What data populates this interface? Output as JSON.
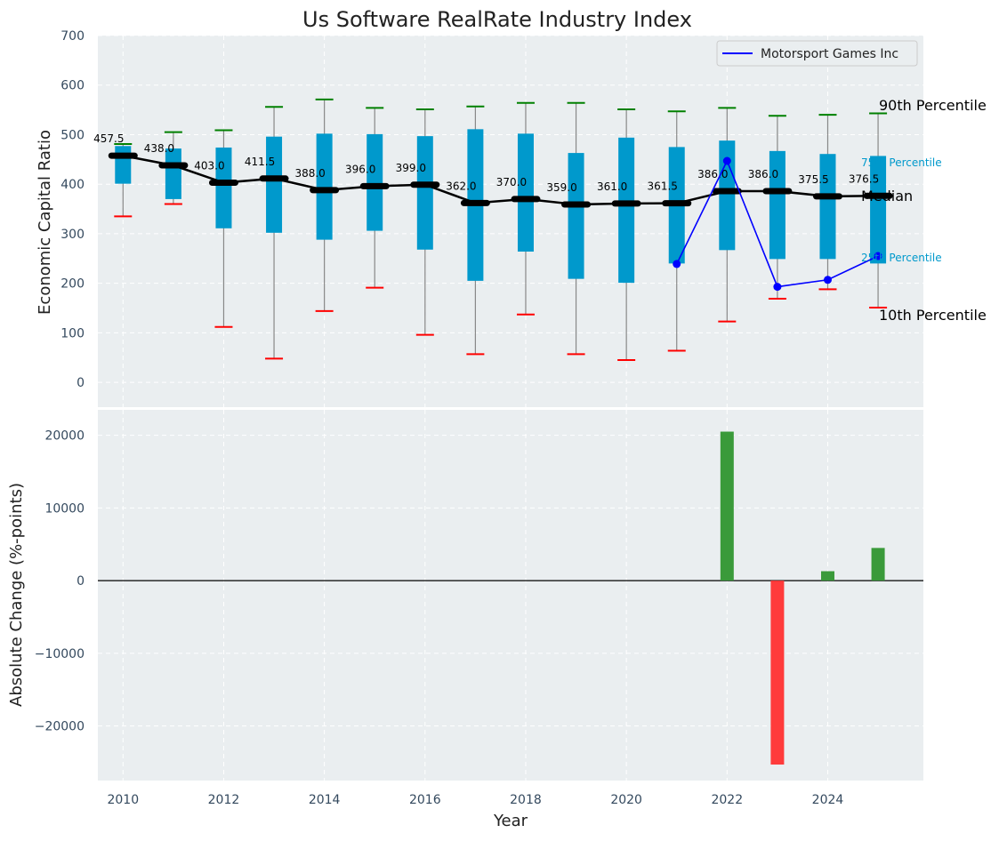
{
  "title": "Us Software RealRate Industry Index",
  "colors": {
    "panel_bg": "#eaeef0",
    "box": "#0099cc",
    "median_line": "#000000",
    "company_line": "#0000ff",
    "whisker_high": "#008000",
    "whisker_low": "#ff0000",
    "bar_positive": "#3a9a3a",
    "bar_negative": "#ff3b3b",
    "tick_text": "#34495e"
  },
  "chart_data": [
    {
      "type": "box",
      "title": "Us Software RealRate Industry Index",
      "xlabel": "",
      "ylabel": "Economic Capital Ratio",
      "ylim": [
        -50,
        700
      ],
      "xlim": [
        2009.5,
        2025.9
      ],
      "yticks": [
        0,
        100,
        200,
        300,
        400,
        500,
        600,
        700
      ],
      "grid": true,
      "legend": {
        "position": "top-right",
        "entries": [
          "Motorsport Games Inc"
        ]
      },
      "years": [
        2010,
        2011,
        2012,
        2013,
        2014,
        2015,
        2016,
        2017,
        2018,
        2019,
        2020,
        2021,
        2022,
        2023,
        2024,
        2025
      ],
      "p10": [
        335,
        360,
        112,
        48,
        144,
        191,
        96,
        57,
        137,
        57,
        45,
        64,
        123,
        169,
        188,
        151
      ],
      "p25": [
        401,
        370,
        311,
        302,
        288,
        306,
        268,
        205,
        264,
        209,
        201,
        240,
        267,
        249,
        249,
        240
      ],
      "median": [
        457.5,
        438.0,
        403.0,
        411.5,
        388.0,
        396.0,
        399.0,
        362.0,
        370.0,
        359.0,
        361.0,
        361.5,
        386.0,
        386.0,
        375.5,
        376.5
      ],
      "median_labels": [
        "457.5",
        "438.0",
        "403.0",
        "411.5",
        "388.0",
        "396.0",
        "399.0",
        "362.0",
        "370.0",
        "359.0",
        "361.0",
        "361.5",
        "386.0",
        "386.0",
        "375.5",
        "376.5"
      ],
      "p75": [
        477,
        472,
        474,
        496,
        502,
        501,
        497,
        511,
        502,
        463,
        494,
        475,
        488,
        467,
        461,
        457
      ],
      "p90": [
        481,
        505,
        509,
        556,
        571,
        554,
        551,
        557,
        564,
        564,
        551,
        547,
        554,
        538,
        540,
        543
      ],
      "series": [
        {
          "name": "Motorsport Games Inc",
          "x": [
            2021,
            2022,
            2023,
            2024,
            2025
          ],
          "values": [
            239,
            447,
            193,
            207,
            255
          ]
        }
      ],
      "annotations": [
        "90th Percentile",
        "75th Percentile",
        "Median",
        "25th Percentile",
        "10th Percentile"
      ]
    },
    {
      "type": "bar",
      "xlabel": "Year",
      "ylabel": "Absolute Change (%-points)",
      "ylim": [
        -27500,
        23500
      ],
      "yticks": [
        -20000,
        -10000,
        0,
        10000,
        20000
      ],
      "ytick_labels": [
        "−20000",
        "−10000",
        "0",
        "10000",
        "20000"
      ],
      "xticks": [
        2010,
        2012,
        2014,
        2016,
        2018,
        2020,
        2022,
        2024
      ],
      "xtick_labels": [
        "2010",
        "2012",
        "2014",
        "2016",
        "2018",
        "2020",
        "2022",
        "2024"
      ],
      "grid": true,
      "x": [
        2022,
        2023,
        2024,
        2025
      ],
      "values": [
        20500,
        -25300,
        1300,
        4500
      ]
    }
  ]
}
